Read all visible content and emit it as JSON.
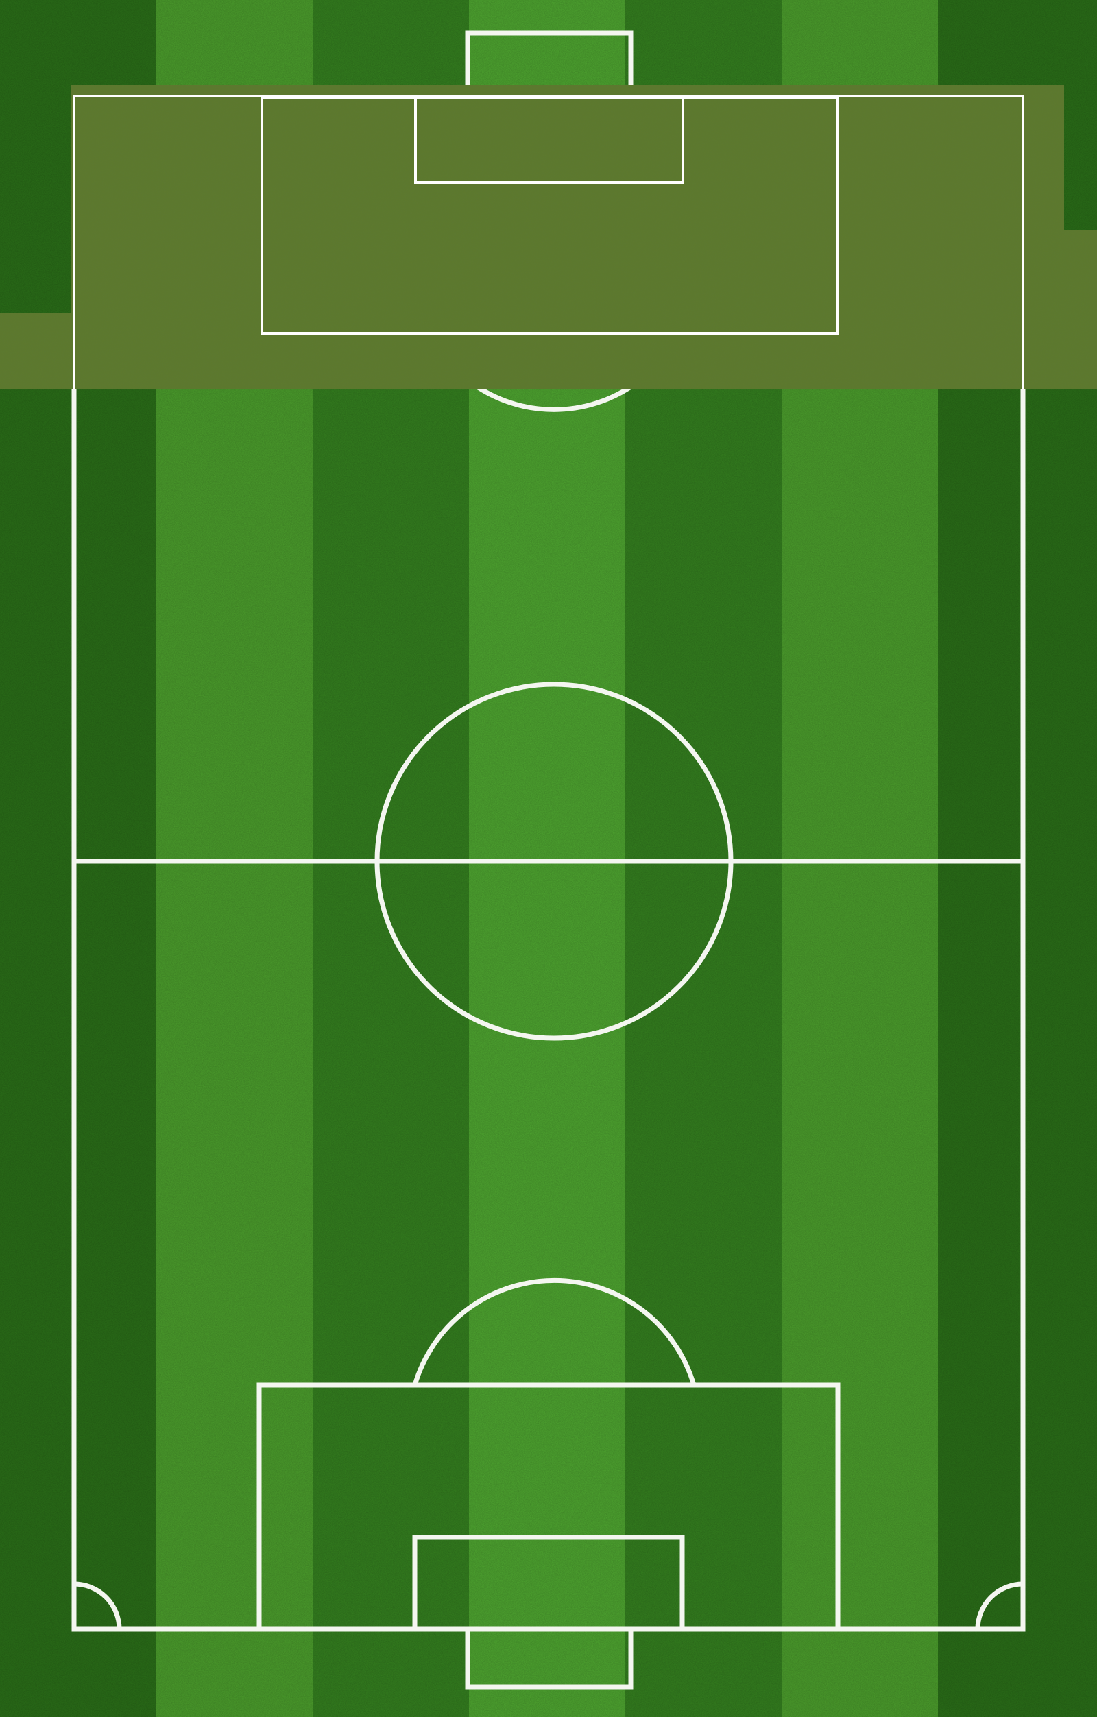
{
  "colors": {
    "grass_dark": "#2d7a1c",
    "grass_light": "#4da12e",
    "grass_border": "#2b6f19",
    "overlay_olive": "#5c7a2a",
    "line_white": "#ffffff"
  },
  "pitch": {
    "stripe_count": 7,
    "orientation": "vertical",
    "overlay_present": true
  }
}
